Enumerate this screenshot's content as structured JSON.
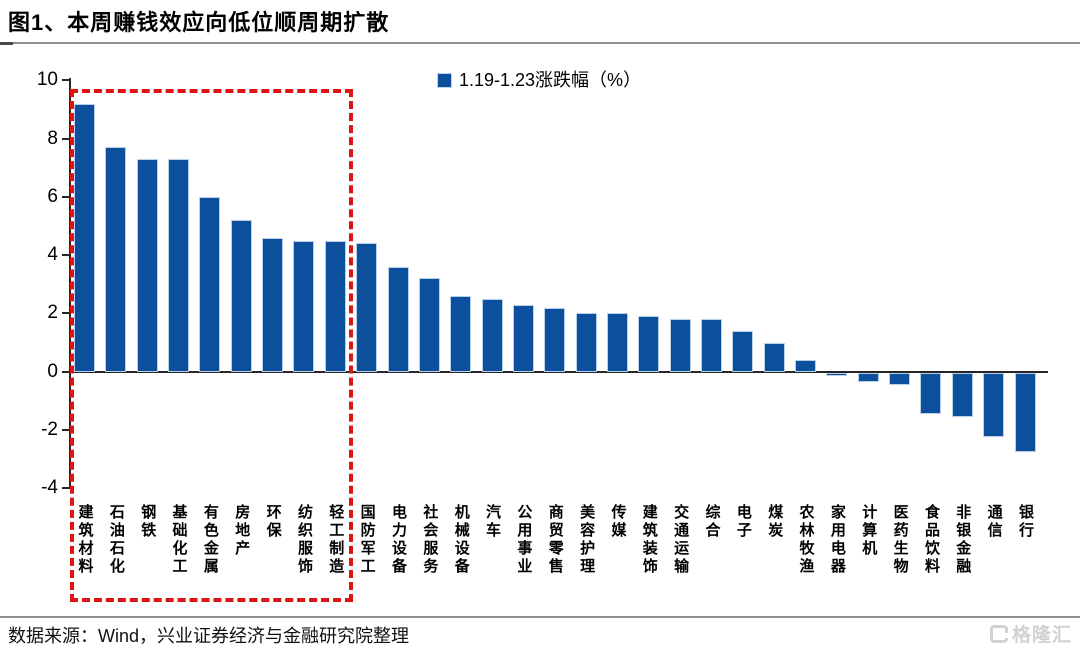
{
  "header": {
    "title": "图1、本周赚钱效应向低位顺周期扩散"
  },
  "chart_data": {
    "type": "bar",
    "title": "图1、本周赚钱效应向低位顺周期扩散",
    "legend": "1.19-1.23涨跌幅（%）",
    "legend_position": "top-center",
    "grid": false,
    "ylim": [
      -4,
      10
    ],
    "yticks": [
      10,
      8,
      6,
      4,
      2,
      0,
      -2,
      -4
    ],
    "bar_color": "#0b4f9d",
    "bar_border_color": "#b9d0e8",
    "categories": [
      "建筑材料",
      "石油石化",
      "钢铁",
      "基础化工",
      "有色金属",
      "房地产",
      "环保",
      "纺织服饰",
      "轻工制造",
      "国防军工",
      "电力设备",
      "社会服务",
      "机械设备",
      "汽车",
      "公用事业",
      "商贸零售",
      "美容护理",
      "传媒",
      "建筑装饰",
      "交通运输",
      "综合",
      "电子",
      "煤炭",
      "农林牧渔",
      "家用电器",
      "计算机",
      "医药生物",
      "食品饮料",
      "非银金融",
      "通信",
      "银行"
    ],
    "values": [
      9.2,
      7.7,
      7.3,
      7.3,
      6.0,
      5.2,
      4.6,
      4.5,
      4.5,
      4.4,
      3.6,
      3.2,
      2.6,
      2.5,
      2.3,
      2.2,
      2.0,
      2.0,
      1.9,
      1.8,
      1.8,
      1.4,
      1.0,
      0.4,
      -0.1,
      -0.3,
      -0.4,
      -1.4,
      -1.5,
      -2.2,
      -2.7
    ],
    "annotation": {
      "description": "red dashed rectangle highlighting the leading low-position pro-cyclical sectors",
      "style": "dashed",
      "color": "#dc1414",
      "from_category_index": 0,
      "to_category_index": 8
    }
  },
  "footer": {
    "source": "数据来源：Wind，兴业证券经济与金融研究院整理"
  },
  "watermark": {
    "label": "格隆汇"
  }
}
